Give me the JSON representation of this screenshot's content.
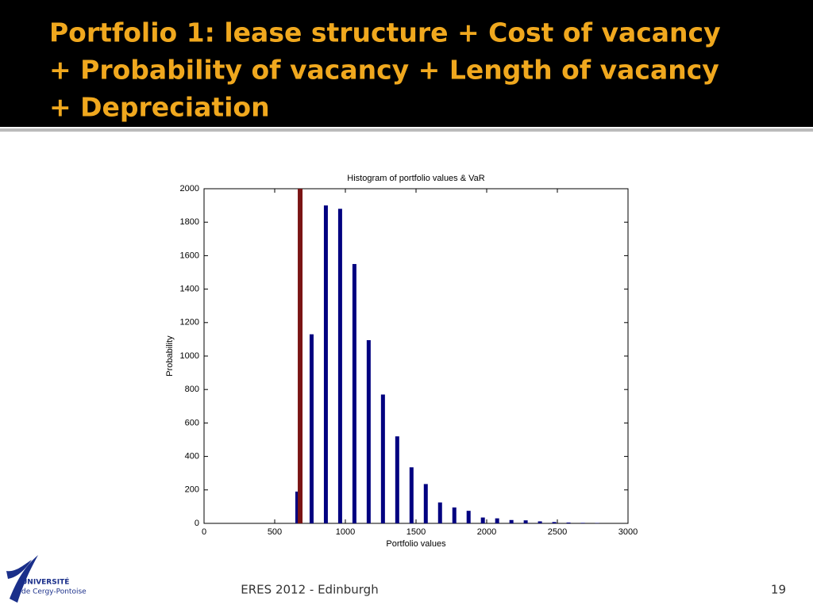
{
  "slide": {
    "title": [
      "Portfolio 1: lease structure + Cost of vacancy",
      "+ Probability of vacancy + Length of vacancy",
      "+ Depreciation"
    ],
    "footer": "ERES 2012 - Edinburgh",
    "page_number": "19",
    "logo": [
      "UNIVERSITÉ",
      "de Cergy-Pontoise"
    ]
  },
  "chart_data": {
    "type": "bar",
    "title": "Histogram of portfolio values & VaR",
    "x_label": "Portfolio values",
    "y_label": "Probability",
    "x": [
      660,
      761,
      862,
      963,
      1064,
      1165,
      1266,
      1367,
      1468,
      1569,
      1670,
      1771,
      1872,
      1973,
      2074,
      2175,
      2276,
      2377,
      2478,
      2579,
      2680,
      2781
    ],
    "values": [
      190,
      1130,
      1900,
      1880,
      1550,
      1095,
      770,
      520,
      335,
      235,
      125,
      95,
      75,
      35,
      30,
      20,
      18,
      12,
      8,
      5,
      3,
      2
    ],
    "color": "#000080",
    "var_x": 680,
    "var_color": "#7a1414",
    "xlim": [
      0,
      3000
    ],
    "xticks": [
      0,
      500,
      1000,
      1500,
      2000,
      2500,
      3000
    ],
    "ylim": [
      0,
      2000
    ],
    "yticks": [
      0,
      200,
      400,
      600,
      800,
      1000,
      1200,
      1400,
      1600,
      1800,
      2000
    ]
  }
}
